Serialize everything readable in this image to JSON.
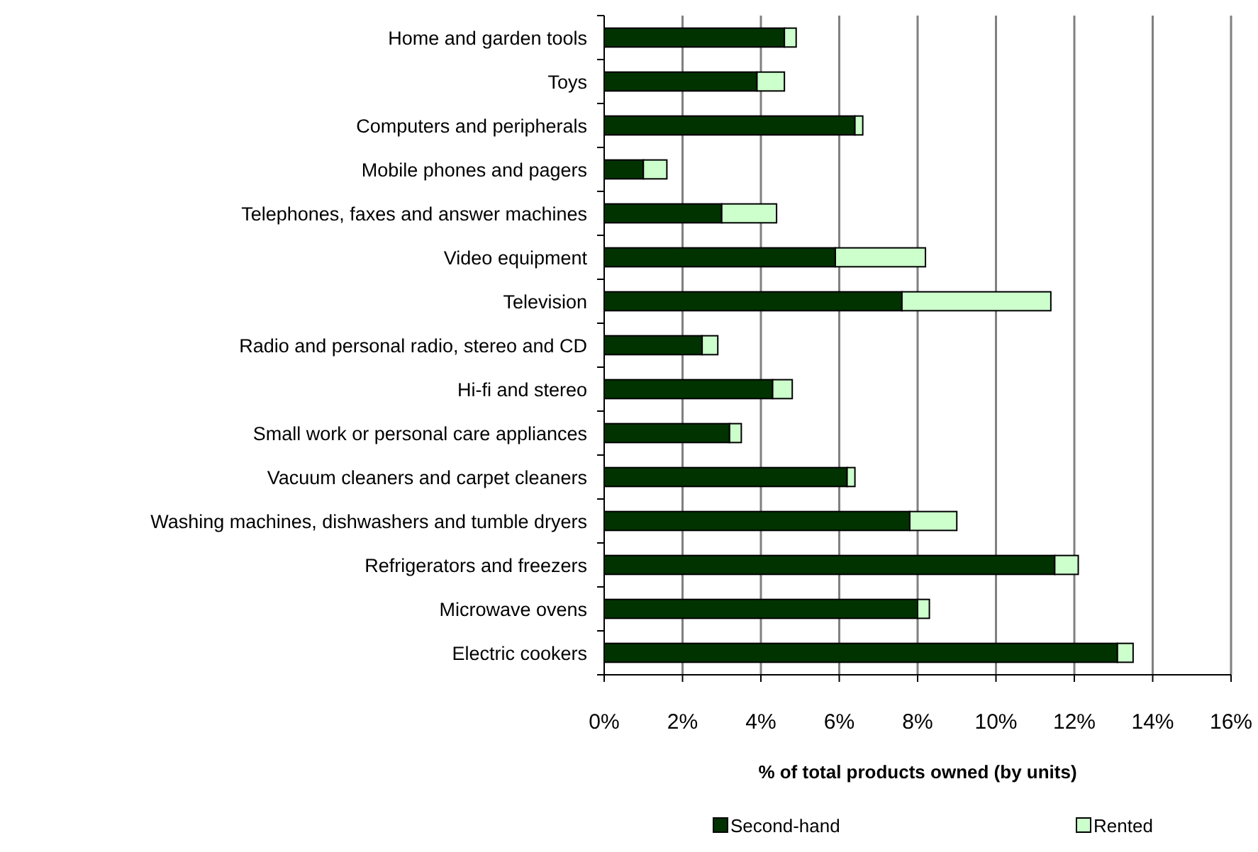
{
  "chart_data": {
    "type": "bar",
    "orientation": "horizontal",
    "stacked": true,
    "categories": [
      "Home and garden tools",
      "Toys",
      "Computers and peripherals",
      "Mobile phones and pagers",
      "Telephones, faxes and answer machines",
      "Video equipment",
      "Television",
      "Radio and personal radio, stereo and CD",
      "Hi-fi and stereo",
      "Small work or personal care appliances",
      "Vacuum cleaners and carpet cleaners",
      "Washing machines, dishwashers and tumble dryers",
      "Refrigerators and freezers",
      "Microwave ovens",
      "Electric cookers"
    ],
    "series": [
      {
        "name": "Second-hand",
        "color": "#003300",
        "values": [
          4.6,
          3.9,
          6.4,
          1.0,
          3.0,
          5.9,
          7.6,
          2.5,
          4.3,
          3.2,
          6.2,
          7.8,
          11.5,
          8.0,
          13.1
        ]
      },
      {
        "name": "Rented",
        "color": "#ccffcc",
        "values": [
          0.3,
          0.7,
          0.2,
          0.6,
          1.4,
          2.3,
          3.8,
          0.4,
          0.5,
          0.3,
          0.2,
          1.2,
          0.6,
          0.3,
          0.4
        ]
      }
    ],
    "xlabel": "% of total products owned (by units)",
    "xlim": [
      0,
      16
    ],
    "xticks": [
      {
        "value": 0,
        "label": "0%"
      },
      {
        "value": 2,
        "label": "2%"
      },
      {
        "value": 4,
        "label": "4%"
      },
      {
        "value": 6,
        "label": "6%"
      },
      {
        "value": 8,
        "label": "8%"
      },
      {
        "value": 10,
        "label": "10%"
      },
      {
        "value": 12,
        "label": "12%"
      },
      {
        "value": 14,
        "label": "14%"
      },
      {
        "value": 16,
        "label": "16%"
      }
    ],
    "grid": "x",
    "legend": "bottom"
  }
}
